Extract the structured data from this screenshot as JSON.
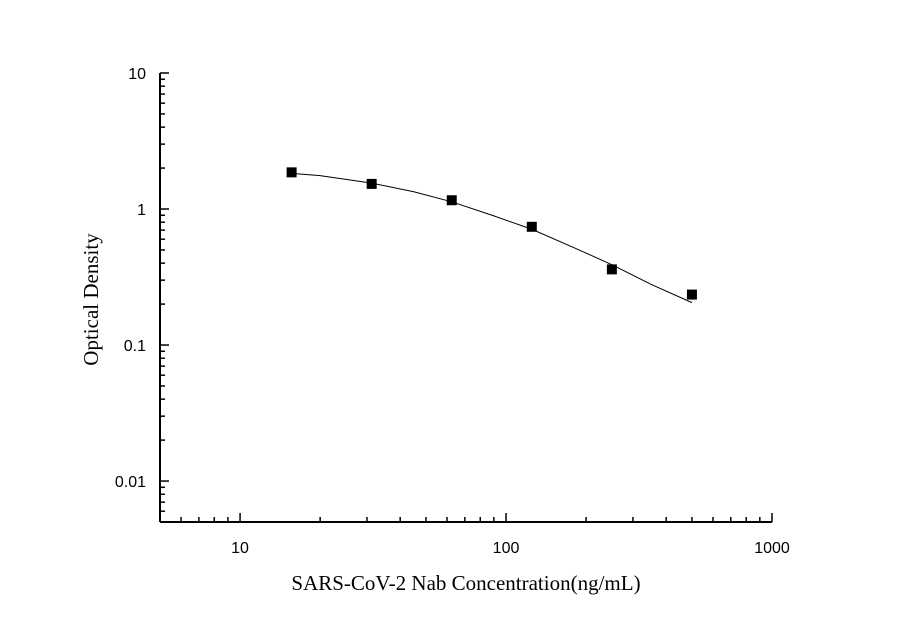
{
  "chart_data": {
    "type": "scatter",
    "title": "",
    "xlabel": "SARS-CoV-2 Nab Concentration(ng/mL)",
    "ylabel": "Optical Density",
    "x_scale": "log",
    "y_scale": "log",
    "xlim": [
      5,
      1000
    ],
    "ylim": [
      0.005,
      10
    ],
    "x_ticks": [
      {
        "value": 10,
        "label": "10"
      },
      {
        "value": 100,
        "label": "100"
      },
      {
        "value": 1000,
        "label": "1000"
      }
    ],
    "y_ticks": [
      {
        "value": 0.01,
        "label": "0.01"
      },
      {
        "value": 0.1,
        "label": "0.1"
      },
      {
        "value": 1,
        "label": "1"
      },
      {
        "value": 10,
        "label": "10"
      }
    ],
    "grid": false,
    "legend": "none",
    "series": [
      {
        "marker": "square",
        "color": "#000000",
        "x": [
          15.625,
          31.25,
          62.5,
          125,
          250,
          500
        ],
        "y": [
          1.86,
          1.53,
          1.16,
          0.74,
          0.36,
          0.235
        ]
      }
    ],
    "fit_curve": {
      "color": "#000000",
      "x": [
        15.625,
        20,
        31.25,
        45,
        62.5,
        90,
        125,
        180,
        250,
        350,
        500
      ],
      "y": [
        1.83,
        1.76,
        1.55,
        1.34,
        1.13,
        0.89,
        0.71,
        0.52,
        0.39,
        0.28,
        0.205
      ]
    }
  }
}
